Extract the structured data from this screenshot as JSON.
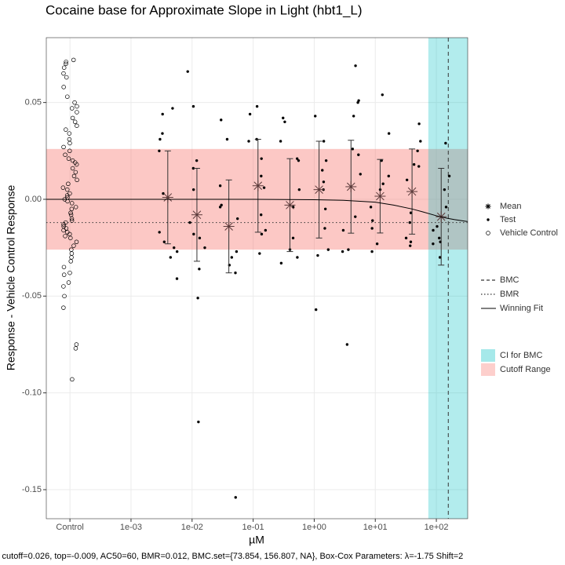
{
  "chart_data": {
    "type": "dose-response",
    "title": "Cocaine base for Approximate Slope in Light (hbt1_L)",
    "xlabel": "µM",
    "ylabel": "Response - Vehicle Control Response",
    "caption": "l, cutoff=0.026, top=-0.009, AC50=60, BMR=0.012, BMC.set={73.854, 156.807, NA}, Box-Cox Parameters: λ=-1.75 Shift=2",
    "xscale": "log",
    "xlim": [
      4.1e-05,
      326
    ],
    "ylim": [
      -0.165,
      0.0835
    ],
    "grid": true,
    "xticks": [
      {
        "value": 0.0001,
        "label": "Control"
      },
      {
        "value": 0.001,
        "label": "1e-03"
      },
      {
        "value": 0.01,
        "label": "1e-02"
      },
      {
        "value": 0.1,
        "label": "1e-01"
      },
      {
        "value": 1,
        "label": "1e+00"
      },
      {
        "value": 10,
        "label": "1e+01"
      },
      {
        "value": 100,
        "label": "1e+02"
      }
    ],
    "yticks": [
      -0.15,
      {
        "value": -0.1,
        "label": "-0.10"
      },
      -0.05,
      {
        "value": 0,
        "label": "0.00"
      },
      0.05
    ],
    "cutoff_range": [
      -0.026,
      0.026
    ],
    "cutoff_color": "#F8766D",
    "bmc_ci": [
      73.854,
      null
    ],
    "ci_color": "#00BFC4",
    "bmc": 156.807,
    "bmr_line": -0.012,
    "control": {
      "x": 0.0001,
      "values": [
        0.072,
        0.071,
        0.07,
        0.068,
        0.065,
        0.063,
        0.058,
        0.053,
        0.05,
        0.048,
        0.047,
        0.045,
        0.042,
        0.04,
        0.038,
        0.036,
        0.034,
        0.031,
        0.029,
        0.027,
        0.025,
        0.023,
        0.021,
        0.02,
        0.019,
        0.018,
        0.016,
        0.014,
        0.012,
        0.01,
        0.008,
        0.006,
        0.005,
        0.003,
        0.002,
        0.001,
        0,
        -0.001,
        -0.002,
        -0.004,
        -0.005,
        -0.007,
        -0.008,
        -0.01,
        -0.011,
        -0.012,
        -0.013,
        -0.014,
        -0.015,
        -0.016,
        -0.017,
        -0.018,
        -0.019,
        -0.02,
        -0.022,
        -0.024,
        -0.026,
        -0.028,
        -0.03,
        -0.032,
        -0.035,
        -0.038,
        -0.039,
        -0.043,
        -0.045,
        -0.05,
        -0.056,
        -0.075,
        -0.077,
        -0.093
      ]
    },
    "groups": [
      {
        "x": 0.004,
        "mean": 0.001,
        "error": 0.024,
        "values": [
          0.047,
          0.044,
          0.034,
          0.031,
          0.025,
          0.003,
          -0.017,
          -0.022,
          -0.025,
          -0.027,
          -0.03,
          -0.041
        ]
      },
      {
        "x": 0.012,
        "mean": -0.008,
        "error": 0.024,
        "values": [
          0.066,
          0.048,
          0.02,
          0.016,
          0.005,
          -0.012,
          -0.018,
          -0.02,
          -0.025,
          -0.036,
          -0.051,
          -0.115
        ]
      },
      {
        "x": 0.04,
        "mean": -0.014,
        "error": 0.024,
        "values": [
          0.041,
          0.031,
          0.007,
          -0.003,
          -0.004,
          -0.01,
          -0.027,
          -0.03,
          -0.034,
          -0.038,
          -0.154
        ]
      },
      {
        "x": 0.12,
        "mean": 0.007,
        "error": 0.024,
        "values": [
          0.048,
          0.044,
          0.031,
          0.03,
          0.021,
          0.012,
          0.006,
          -0.008,
          -0.016,
          -0.018,
          -0.028
        ]
      },
      {
        "x": 0.4,
        "mean": -0.003,
        "error": 0.024,
        "values": [
          0.042,
          0.04,
          0.03,
          0.021,
          0.02,
          0.005,
          -0.004,
          -0.02,
          -0.026,
          -0.03,
          -0.033
        ]
      },
      {
        "x": 1.2,
        "mean": 0.005,
        "error": 0.025,
        "values": [
          0.043,
          0.03,
          0.02,
          0.015,
          0.009,
          0.005,
          -0.005,
          -0.015,
          -0.026,
          -0.029,
          -0.057
        ]
      },
      {
        "x": 4,
        "mean": 0.0065,
        "error": 0.024,
        "values": [
          0.069,
          0.051,
          0.05,
          0.043,
          0.026,
          0.023,
          0.013,
          -0.009,
          -0.016,
          -0.026,
          -0.027,
          -0.075
        ]
      },
      {
        "x": 12,
        "mean": 0.0016,
        "error": 0.019,
        "values": [
          0.054,
          0.034,
          0.02,
          0.012,
          0.008,
          0.005,
          -0.004,
          -0.011,
          -0.015,
          -0.023,
          -0.027
        ]
      },
      {
        "x": 40,
        "mean": 0.004,
        "error": 0.022,
        "values": [
          0.039,
          0.03,
          0.025,
          0.018,
          0.017,
          0.01,
          -0.007,
          -0.012,
          -0.02,
          -0.022,
          -0.024
        ]
      },
      {
        "x": 120,
        "mean": -0.009,
        "error": 0.025,
        "values": [
          0.029,
          0.012,
          0.005,
          -0.004,
          -0.014,
          -0.016,
          -0.02,
          -0.022,
          -0.023,
          -0.03
        ]
      }
    ],
    "fit": {
      "x": [
        4.1e-05,
        0.01,
        0.1,
        1,
        3,
        10,
        20,
        40,
        60,
        100,
        150,
        200,
        326
      ],
      "y": [
        0,
        0,
        0,
        -0.0002,
        -0.0005,
        -0.0015,
        -0.003,
        -0.005,
        -0.0065,
        -0.0085,
        -0.0098,
        -0.0105,
        -0.0115
      ]
    },
    "legend_points": [
      {
        "name": "Mean",
        "shape": "asterisk"
      },
      {
        "name": "Test",
        "shape": "dot"
      },
      {
        "name": "Vehicle Control",
        "shape": "open-circle"
      }
    ],
    "legend_lines": [
      {
        "name": "BMC",
        "style": "dashed"
      },
      {
        "name": "BMR",
        "style": "dotted"
      },
      {
        "name": "Winning Fit",
        "style": "solid"
      }
    ],
    "legend_fills": [
      {
        "name": "CI for BMC",
        "color": "#00BFC4"
      },
      {
        "name": "Cutoff Range",
        "color": "#F8766D"
      }
    ]
  }
}
